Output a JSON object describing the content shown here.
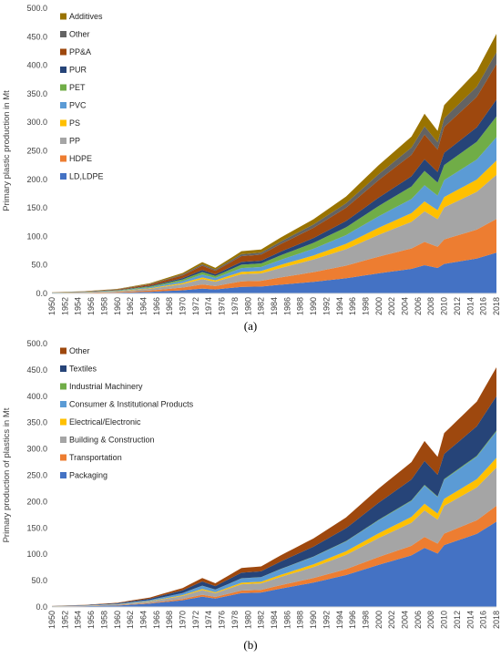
{
  "chart_data": [
    {
      "type": "area",
      "stacked": true,
      "caption": "(a)",
      "ylabel": "Primary plastic production in Mt",
      "xlabel": "",
      "ylim": [
        0,
        500
      ],
      "yticks": [
        "0.0",
        "50.0",
        "100.0",
        "150.0",
        "200.0",
        "250.0",
        "300.0",
        "350.0",
        "400.0",
        "450.0",
        "500.0"
      ],
      "xticks": [
        "1950",
        "1952",
        "1954",
        "1956",
        "1958",
        "1960",
        "1962",
        "1964",
        "1966",
        "1968",
        "1970",
        "1972",
        "1974",
        "1976",
        "1978",
        "1980",
        "1982",
        "1984",
        "1986",
        "1988",
        "1990",
        "1992",
        "1994",
        "1996",
        "1998",
        "2000",
        "2002",
        "2004",
        "2006",
        "2008",
        "2010",
        "2012",
        "2014",
        "2016",
        "2018"
      ],
      "legend_position": "top-left",
      "anchor_years": [
        1950,
        1955,
        1960,
        1965,
        1970,
        1973,
        1975,
        1979,
        1982,
        1985,
        1990,
        1995,
        2000,
        2005,
        2007,
        2009,
        2010,
        2015,
        2018
      ],
      "totals": [
        2,
        4,
        8,
        18,
        36,
        55,
        45,
        74,
        77,
        98,
        130,
        170,
        225,
        275,
        315,
        285,
        330,
        390,
        455
      ],
      "series": [
        {
          "name": "LD,LDPE",
          "color": "#4472C4",
          "share": 0.157
        },
        {
          "name": "HDPE",
          "color": "#ED7D31",
          "share": 0.13
        },
        {
          "name": "PP",
          "color": "#A5A5A5",
          "share": 0.17
        },
        {
          "name": "PS",
          "color": "#FFC000",
          "share": 0.055
        },
        {
          "name": "PVC",
          "color": "#5B9BD5",
          "share": 0.09
        },
        {
          "name": "PET",
          "color": "#70AD47",
          "share": 0.08
        },
        {
          "name": "PUR",
          "color": "#264478",
          "share": 0.065
        },
        {
          "name": "PP&A",
          "color": "#9E480E",
          "share": 0.137
        },
        {
          "name": "Other",
          "color": "#636363",
          "share": 0.046
        },
        {
          "name": "Additives",
          "color": "#997300",
          "share": 0.07
        }
      ]
    },
    {
      "type": "area",
      "stacked": true,
      "caption": "(b)",
      "ylabel": "Primary production of plastics in Mt",
      "xlabel": "",
      "ylim": [
        0,
        500
      ],
      "yticks": [
        "0.0",
        "50.0",
        "100.0",
        "150.0",
        "200.0",
        "250.0",
        "300.0",
        "350.0",
        "400.0",
        "450.0",
        "500.0"
      ],
      "xticks": [
        "1950",
        "1952",
        "1954",
        "1956",
        "1958",
        "1960",
        "1962",
        "1964",
        "1966",
        "1968",
        "1970",
        "1972",
        "1974",
        "1976",
        "1978",
        "1980",
        "1982",
        "1984",
        "1986",
        "1988",
        "1990",
        "1992",
        "1994",
        "1996",
        "1998",
        "2000",
        "2002",
        "2004",
        "2006",
        "2008",
        "2010",
        "2012",
        "2014",
        "2016",
        "2018"
      ],
      "legend_position": "top-left",
      "anchor_years": [
        1950,
        1955,
        1960,
        1965,
        1970,
        1973,
        1975,
        1979,
        1982,
        1985,
        1990,
        1995,
        2000,
        2005,
        2007,
        2009,
        2010,
        2015,
        2018
      ],
      "totals": [
        2,
        4,
        8,
        18,
        36,
        55,
        45,
        74,
        77,
        98,
        130,
        170,
        225,
        275,
        315,
        285,
        330,
        390,
        455
      ],
      "series": [
        {
          "name": "Packaging",
          "color": "#4472C4",
          "share": 0.356
        },
        {
          "name": "Transportation",
          "color": "#ED7D31",
          "share": 0.066
        },
        {
          "name": "Building & Construction",
          "color": "#A5A5A5",
          "share": 0.16
        },
        {
          "name": "Electrical/Electronic",
          "color": "#FFC000",
          "share": 0.04
        },
        {
          "name": "Consumer & Institutional Products",
          "color": "#5B9BD5",
          "share": 0.11
        },
        {
          "name": "Industrial Machinery",
          "color": "#70AD47",
          "share": 0.004
        },
        {
          "name": "Textiles",
          "color": "#264478",
          "share": 0.144
        },
        {
          "name": "Other",
          "color": "#9E480E",
          "share": 0.12
        }
      ]
    }
  ]
}
